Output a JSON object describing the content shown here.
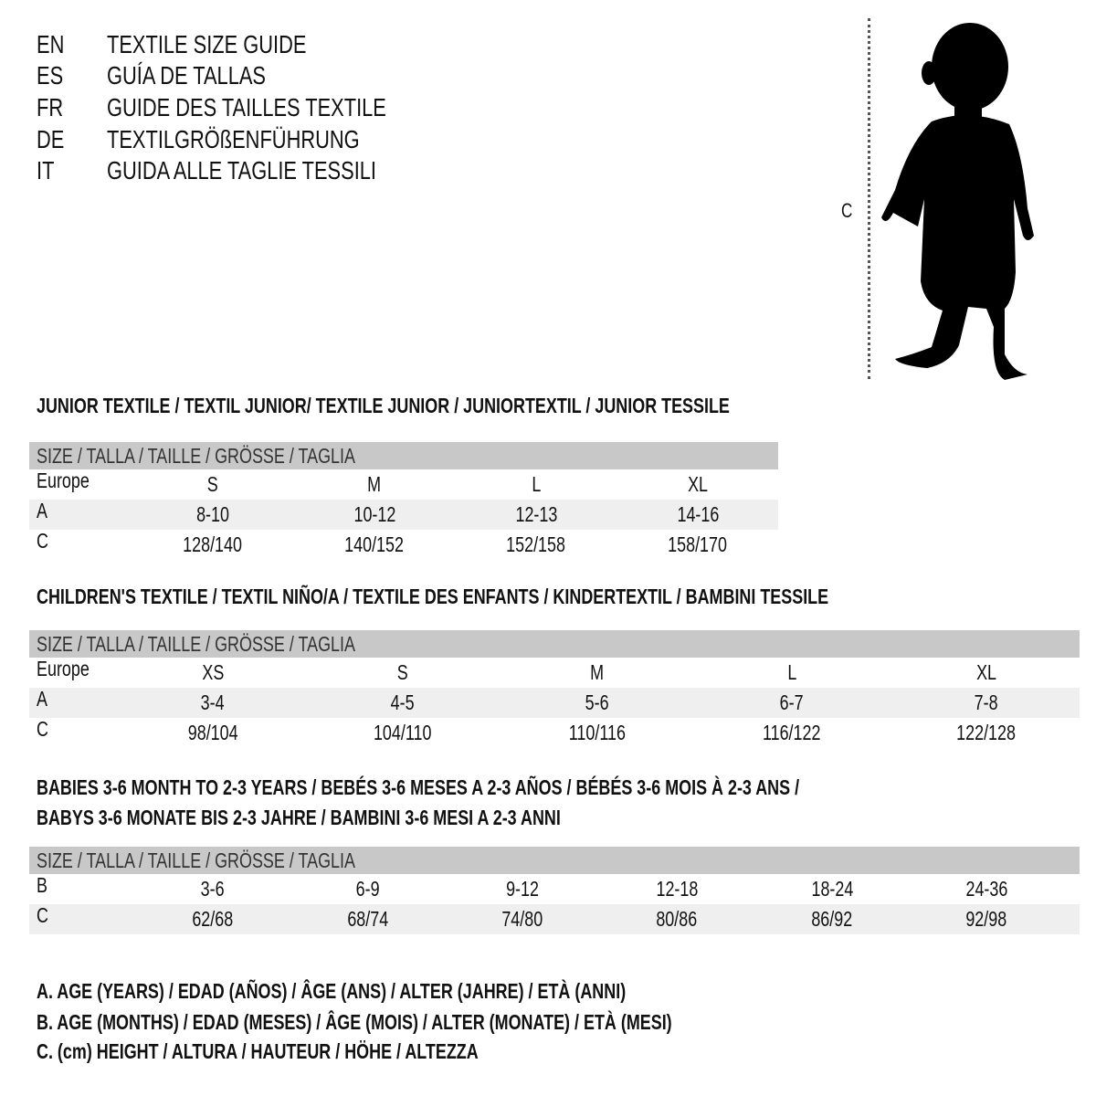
{
  "titles": [
    {
      "code": "EN",
      "text": "TEXTILE SIZE GUIDE"
    },
    {
      "code": "ES",
      "text": "GUÍA DE TALLAS"
    },
    {
      "code": "FR",
      "text": "GUIDE DES TAILLES TEXTILE"
    },
    {
      "code": "DE",
      "text": "TEXTILGRÖßENFÜHRUNG"
    },
    {
      "code": "IT",
      "text": "GUIDA ALLE TAGLIE TESSILI"
    }
  ],
  "figure": {
    "measure_label": "C",
    "icon": "child-silhouette-icon"
  },
  "sections": [
    {
      "title": "JUNIOR TEXTILE / TEXTIL JUNIOR/ TEXTILE JUNIOR / JUNIORTEXTIL / JUNIOR TESSILE",
      "header": "SIZE / TALLA / TAILLE / GRÖSSE / TAGLIA",
      "rows": [
        {
          "label": "Europe",
          "values": [
            "S",
            "M",
            "L",
            "XL"
          ]
        },
        {
          "label": "A",
          "values": [
            "8-10",
            "10-12",
            "12-13",
            "14-16"
          ]
        },
        {
          "label": "C",
          "values": [
            "128/140",
            "140/152",
            "152/158",
            "158/170"
          ]
        }
      ]
    },
    {
      "title": "CHILDREN'S TEXTILE / TEXTIL NIÑO/A / TEXTILE DES ENFANTS / KINDERTEXTIL / BAMBINI TESSILE",
      "header": "SIZE / TALLA / TAILLE / GRÖSSE / TAGLIA",
      "rows": [
        {
          "label": "Europe",
          "values": [
            "XS",
            "S",
            "M",
            "L",
            "XL"
          ]
        },
        {
          "label": "A",
          "values": [
            "3-4",
            "4-5",
            "5-6",
            "6-7",
            "7-8"
          ]
        },
        {
          "label": "C",
          "values": [
            "98/104",
            "104/110",
            "110/116",
            "116/122",
            "122/128"
          ]
        }
      ]
    },
    {
      "title": "BABIES 3-6 MONTH TO 2-3 YEARS / BEBÉS 3-6 MESES A 2-3 AÑOS / BÉBÉS 3-6 MOIS À 2-3 ANS /",
      "title2": "BABYS 3-6 MONATE BIS 2-3 JAHRE / BAMBINI 3-6 MESI A 2-3 ANNI",
      "header": "SIZE / TALLA / TAILLE / GRÖSSE / TAGLIA",
      "rows": [
        {
          "label": "B",
          "values": [
            "3-6",
            "6-9",
            "9-12",
            "12-18",
            "18-24",
            "24-36"
          ]
        },
        {
          "label": "C",
          "values": [
            "62/68",
            "68/74",
            "74/80",
            "80/86",
            "86/92",
            "92/98"
          ]
        }
      ]
    }
  ],
  "legend": [
    "A. AGE (YEARS) / EDAD (AÑOS) / ÂGE (ANS) / ALTER (JAHRE) / ETÀ (ANNI)",
    "B. AGE (MONTHS) / EDAD (MESES) / ÂGE (MOIS) / ALTER (MONATE) / ETÀ (MESI)",
    "C. (cm) HEIGHT / ALTURA / HAUTEUR / HÖHE / ALTEZZA"
  ]
}
